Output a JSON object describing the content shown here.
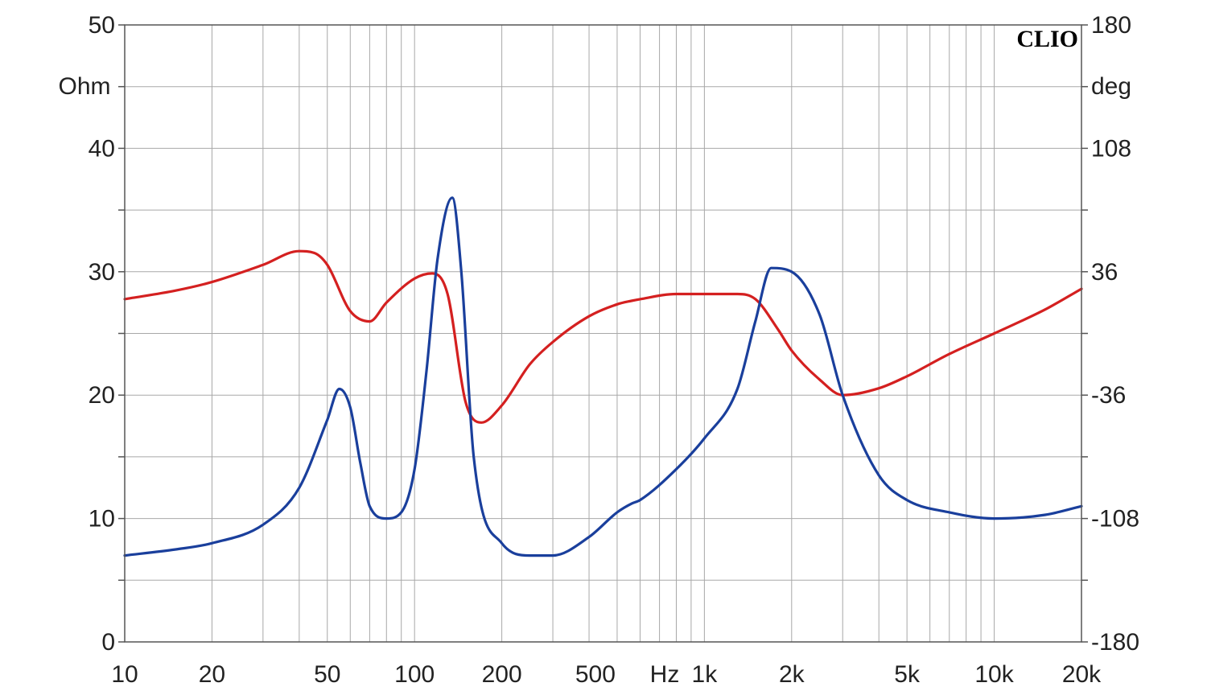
{
  "chart_data": {
    "type": "line",
    "brand": "CLIO",
    "x_scale": "log",
    "xlim": [
      10,
      20000
    ],
    "y_left_label": "Ohm",
    "y_left_lim": [
      0,
      50
    ],
    "y_right_label": "deg",
    "y_right_lim": [
      -180,
      180
    ],
    "grid": true,
    "x_ticks": [
      {
        "value": 10,
        "label": "10"
      },
      {
        "value": 20,
        "label": "20"
      },
      {
        "value": 50,
        "label": "50"
      },
      {
        "value": 100,
        "label": "100"
      },
      {
        "value": 200,
        "label": "200"
      },
      {
        "value": 500,
        "label": "500"
      },
      {
        "value": 1000,
        "label": "1k"
      },
      {
        "value": 2000,
        "label": "2k"
      },
      {
        "value": 5000,
        "label": "5k"
      },
      {
        "value": 10000,
        "label": "10k"
      },
      {
        "value": 20000,
        "label": "20k"
      }
    ],
    "x_unit_label": "Hz",
    "y_left_ticks": [
      0,
      10,
      20,
      30,
      40,
      50
    ],
    "y_right_ticks": [
      -180,
      -108,
      -36,
      36,
      108,
      180
    ],
    "series": [
      {
        "axis": "right",
        "color": "#d42020",
        "x": [
          10,
          15,
          20,
          30,
          40,
          45,
          50,
          60,
          70,
          80,
          100,
          115,
          130,
          150,
          170,
          200,
          250,
          300,
          400,
          500,
          560,
          600,
          800,
          1000,
          1300,
          1500,
          1800,
          2000,
          2500,
          3000,
          4000,
          5000,
          7000,
          10000,
          15000,
          20000
        ],
        "y": [
          20,
          25,
          30,
          40,
          48,
          47,
          40,
          13,
          7,
          18,
          32,
          35,
          23,
          -40,
          -52,
          -42,
          -18,
          -5,
          10,
          17,
          19,
          20,
          23,
          23,
          23,
          20,
          2,
          -10,
          -27,
          -36,
          -32,
          -25,
          -12,
          0,
          14,
          26
        ]
      },
      {
        "axis": "left",
        "color": "#1a3f9c",
        "x": [
          10,
          15,
          20,
          30,
          40,
          50,
          55,
          60,
          65,
          70,
          80,
          90,
          100,
          110,
          120,
          135,
          145,
          160,
          200,
          250,
          300,
          400,
          500,
          560,
          600,
          800,
          1000,
          1300,
          1500,
          1700,
          2000,
          2500,
          3000,
          4000,
          5000,
          7000,
          10000,
          15000,
          20000
        ],
        "y": [
          7,
          7.5,
          8,
          9.5,
          12.5,
          18,
          20.5,
          19,
          14.5,
          11,
          10,
          10.5,
          14,
          22,
          31,
          36,
          30,
          15,
          8,
          7,
          7,
          8.5,
          10.5,
          11.2,
          11.5,
          14,
          16.5,
          20.5,
          26,
          30.3,
          30,
          26.5,
          20,
          13.5,
          11.5,
          10.5,
          10,
          10.3,
          11
        ]
      }
    ]
  }
}
